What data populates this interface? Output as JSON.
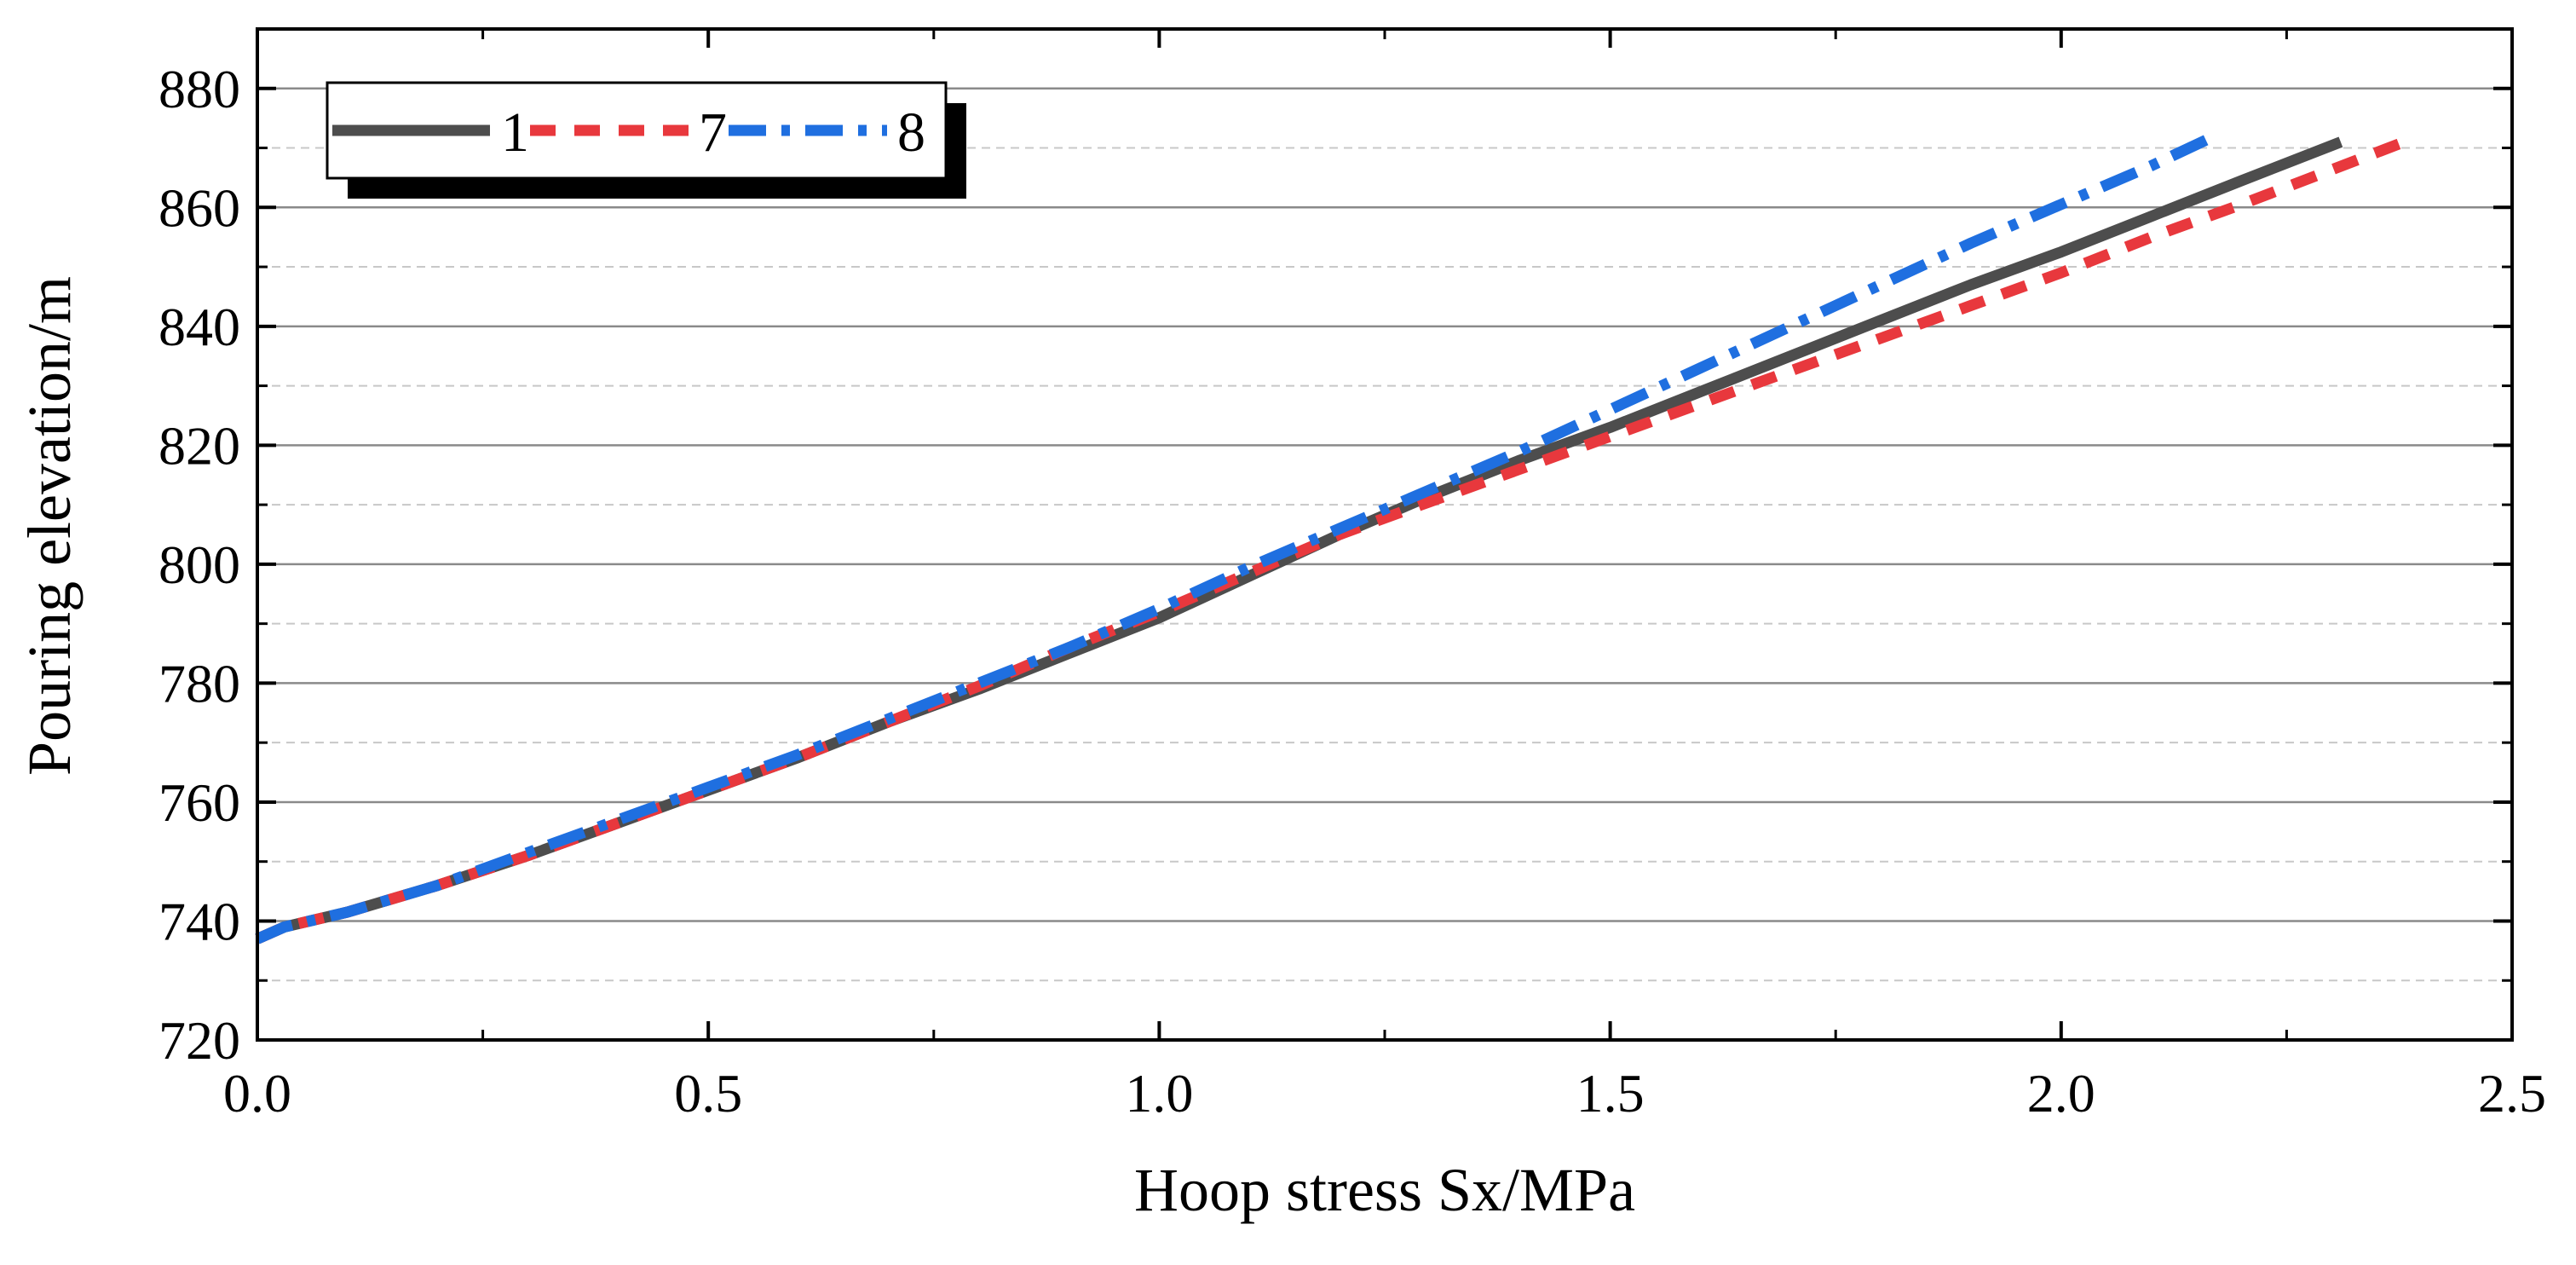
{
  "chart_data": {
    "type": "line",
    "title": "",
    "xlabel": "Hoop stress Sx/MPa",
    "ylabel": "Pouring elevation/m",
    "xlim": [
      0.0,
      2.5
    ],
    "ylim": [
      720,
      890
    ],
    "x_ticks": [
      "0.0",
      "0.5",
      "1.0",
      "1.5",
      "2.0",
      "2.5"
    ],
    "y_ticks": [
      "720",
      "740",
      "760",
      "780",
      "800",
      "820",
      "840",
      "860",
      "880"
    ],
    "grid": "horizontal",
    "legend_position": "top-left",
    "series": [
      {
        "name": "1",
        "color": "#4d4d4d",
        "style": "solid",
        "points": [
          [
            0.0,
            737
          ],
          [
            0.03,
            739
          ],
          [
            0.1,
            741.5
          ],
          [
            0.2,
            746
          ],
          [
            0.3,
            751
          ],
          [
            0.4,
            756.5
          ],
          [
            0.5,
            762
          ],
          [
            0.6,
            767.5
          ],
          [
            0.7,
            773.5
          ],
          [
            0.8,
            779
          ],
          [
            0.9,
            785
          ],
          [
            1.0,
            791
          ],
          [
            1.1,
            798
          ],
          [
            1.2,
            805
          ],
          [
            1.3,
            811.5
          ],
          [
            1.4,
            817.5
          ],
          [
            1.5,
            823
          ],
          [
            1.6,
            829
          ],
          [
            1.7,
            835
          ],
          [
            1.8,
            841
          ],
          [
            1.9,
            847
          ],
          [
            2.0,
            852.5
          ],
          [
            2.1,
            858.5
          ],
          [
            2.2,
            864.5
          ],
          [
            2.31,
            871
          ]
        ]
      },
      {
        "name": "7",
        "color": "#e8383d",
        "style": "dashed",
        "points": [
          [
            0.0,
            737
          ],
          [
            0.03,
            739
          ],
          [
            0.1,
            741.5
          ],
          [
            0.2,
            746
          ],
          [
            0.3,
            751
          ],
          [
            0.4,
            756.5
          ],
          [
            0.5,
            762
          ],
          [
            0.6,
            767.5
          ],
          [
            0.7,
            773.5
          ],
          [
            0.8,
            779.5
          ],
          [
            0.9,
            786
          ],
          [
            1.0,
            792
          ],
          [
            1.1,
            798.5
          ],
          [
            1.2,
            805
          ],
          [
            1.3,
            810.5
          ],
          [
            1.4,
            816
          ],
          [
            1.5,
            821.5
          ],
          [
            1.6,
            827
          ],
          [
            1.7,
            832.5
          ],
          [
            1.8,
            838
          ],
          [
            1.9,
            843.5
          ],
          [
            2.0,
            849
          ],
          [
            2.1,
            855
          ],
          [
            2.2,
            860.5
          ],
          [
            2.38,
            871
          ]
        ]
      },
      {
        "name": "8",
        "color": "#1f6fe0",
        "style": "dashdot",
        "points": [
          [
            0.0,
            737
          ],
          [
            0.03,
            739
          ],
          [
            0.1,
            741.5
          ],
          [
            0.2,
            746
          ],
          [
            0.3,
            751.5
          ],
          [
            0.4,
            757
          ],
          [
            0.5,
            762.5
          ],
          [
            0.6,
            768
          ],
          [
            0.7,
            774
          ],
          [
            0.8,
            780
          ],
          [
            0.9,
            786
          ],
          [
            1.0,
            792.5
          ],
          [
            1.1,
            799.5
          ],
          [
            1.2,
            806
          ],
          [
            1.3,
            812.5
          ],
          [
            1.4,
            819
          ],
          [
            1.5,
            826
          ],
          [
            1.6,
            833
          ],
          [
            1.7,
            840
          ],
          [
            1.8,
            847
          ],
          [
            1.9,
            854
          ],
          [
            2.0,
            860.5
          ],
          [
            2.1,
            867
          ],
          [
            2.17,
            872
          ]
        ]
      }
    ]
  }
}
